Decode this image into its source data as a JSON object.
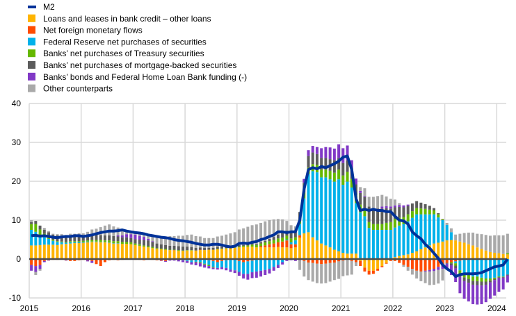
{
  "chart_data": {
    "type": "bar",
    "stacked": true,
    "frequency": "monthly",
    "start": "2015-01",
    "title": "",
    "xlabel": "",
    "ylabel": "",
    "ylim": [
      -10,
      40
    ],
    "yticks": [
      -10,
      0,
      10,
      20,
      30,
      40
    ],
    "xticks": [
      "2015",
      "2016",
      "2017",
      "2018",
      "2019",
      "2020",
      "2021",
      "2022",
      "2023",
      "2024"
    ],
    "grid": true,
    "legend_position": "top-left",
    "line": {
      "name": "M2",
      "color": "#003299",
      "values": [
        6.0,
        6.1,
        5.9,
        6.0,
        5.8,
        5.6,
        5.5,
        5.7,
        5.8,
        5.8,
        6.0,
        6.0,
        5.8,
        6.0,
        6.2,
        6.5,
        6.8,
        7.0,
        7.2,
        7.2,
        7.3,
        7.5,
        7.2,
        7.0,
        6.8,
        6.7,
        6.5,
        6.2,
        6.0,
        5.8,
        5.6,
        5.5,
        5.3,
        5.0,
        4.8,
        4.7,
        4.5,
        4.3,
        4.0,
        3.8,
        3.6,
        3.6,
        3.8,
        3.8,
        3.6,
        3.3,
        3.1,
        3.3,
        4.0,
        4.1,
        4.0,
        4.3,
        4.5,
        5.0,
        5.3,
        5.8,
        6.2,
        7.0,
        7.0,
        6.8,
        7.0,
        7.0,
        10.0,
        18.0,
        23.0,
        23.5,
        23.2,
        23.8,
        23.5,
        24.0,
        24.5,
        25.2,
        26.2,
        26.5,
        23.0,
        15.5,
        12.5,
        12.8,
        12.5,
        12.8,
        12.5,
        12.5,
        12.2,
        12.2,
        11.0,
        10.0,
        9.8,
        9.0,
        7.0,
        6.0,
        5.2,
        3.8,
        2.8,
        1.5,
        0.2,
        -1.5,
        -2.5,
        -3.2,
        -4.5,
        -4.0,
        -3.8,
        -3.8,
        -3.8,
        -3.7,
        -3.5,
        -3.0,
        -2.5,
        -2.0,
        -1.8,
        -1.5,
        0.0
      ]
    },
    "series": [
      {
        "name": "Loans and leases in bank credit – other loans",
        "color": "#FFB400",
        "values": [
          3.5,
          3.5,
          3.6,
          3.7,
          3.7,
          3.7,
          3.6,
          3.8,
          3.9,
          4.0,
          4.1,
          4.1,
          4.2,
          4.3,
          4.4,
          4.4,
          4.3,
          4.3,
          4.2,
          4.0,
          4.0,
          3.9,
          3.9,
          3.8,
          3.6,
          3.4,
          3.2,
          3.0,
          2.8,
          2.6,
          2.5,
          2.4,
          2.3,
          2.2,
          2.1,
          2.1,
          2.2,
          2.2,
          2.2,
          2.3,
          2.3,
          2.4,
          2.4,
          2.5,
          2.6,
          2.7,
          2.8,
          2.9,
          3.0,
          3.1,
          3.2,
          3.2,
          3.0,
          3.0,
          3.0,
          3.0,
          3.0,
          3.1,
          3.0,
          3.0,
          2.8,
          3.0,
          5.5,
          6.6,
          6.9,
          5.6,
          4.8,
          4.0,
          3.5,
          3.0,
          2.4,
          2.0,
          1.6,
          1.4,
          1.4,
          1.4,
          -0.5,
          -2.2,
          -3.0,
          -3.0,
          -2.5,
          -1.8,
          -1.0,
          -0.2,
          0.5,
          0.8,
          1.0,
          1.2,
          1.6,
          2.0,
          2.5,
          3.0,
          3.5,
          4.0,
          4.2,
          4.5,
          4.8,
          4.9,
          4.8,
          4.5,
          4.2,
          3.8,
          3.5,
          3.0,
          2.6,
          2.2,
          1.8,
          1.6,
          1.5,
          1.3,
          1.2
        ]
      },
      {
        "name": "Net foreign  monetary flows",
        "color": "#FF4B00",
        "values": [
          -1.5,
          -1.8,
          -1.5,
          -0.5,
          -0.3,
          -0.2,
          -0.2,
          -0.1,
          -0.3,
          -0.5,
          -0.5,
          -0.3,
          -0.2,
          -0.3,
          -0.5,
          -1.3,
          -1.8,
          -0.8,
          -0.3,
          -0.2,
          -0.3,
          -0.2,
          -0.1,
          -0.1,
          -0.2,
          -0.2,
          -0.3,
          -0.1,
          -0.2,
          -0.3,
          -0.4,
          -0.5,
          -0.1,
          0.1,
          -0.1,
          -0.2,
          -0.2,
          -0.3,
          -0.1,
          0.1,
          -0.2,
          -0.3,
          -0.5,
          -0.8,
          -0.5,
          -0.3,
          -0.2,
          -0.1,
          -0.5,
          -0.8,
          -0.6,
          -0.4,
          -0.2,
          0.3,
          0.5,
          0.8,
          1.0,
          1.2,
          1.5,
          1.8,
          1.0,
          0.8,
          0.6,
          -0.5,
          -0.9,
          -1.0,
          -1.2,
          -1.3,
          -1.2,
          -1.0,
          -0.9,
          -0.6,
          -0.4,
          -0.2,
          -0.5,
          -0.8,
          -1.3,
          -1.0,
          -1.0,
          -0.8,
          -0.5,
          -0.3,
          -0.2,
          -0.3,
          -0.5,
          -1.0,
          -1.5,
          -2.0,
          -2.5,
          -3.0,
          -3.2,
          -3.0,
          -2.8,
          -2.5,
          -2.0,
          -1.5,
          -1.0,
          -0.8,
          -0.6,
          -0.4,
          -0.2,
          -0.1,
          0,
          0,
          0,
          0,
          0,
          0,
          0,
          0,
          0
        ]
      },
      {
        "name": "Federal Reserve net purchases of securities",
        "color": "#00B1EA",
        "values": [
          4.0,
          3.5,
          2.5,
          2.0,
          1.5,
          1.0,
          0.8,
          0.5,
          0.3,
          0.3,
          0.2,
          0.2,
          0.2,
          0.2,
          0.1,
          0.1,
          0.1,
          0.1,
          0.1,
          0.1,
          0.1,
          0,
          0,
          0,
          0,
          0,
          0,
          0,
          0,
          0,
          0,
          0,
          0,
          0,
          0,
          -0.1,
          -0.3,
          -0.5,
          -0.6,
          -0.8,
          -1.0,
          -1.2,
          -1.5,
          -1.5,
          -1.6,
          -2.0,
          -2.5,
          -2.8,
          -2.8,
          -3.0,
          -3.2,
          -3.0,
          -3.0,
          -3.0,
          -2.8,
          -2.5,
          -2.0,
          -1.5,
          -0.8,
          0.2,
          0.5,
          1.0,
          3.0,
          9.0,
          15.0,
          17.0,
          17.5,
          17.0,
          17.5,
          17.5,
          17.5,
          18.5,
          17.5,
          18.5,
          17.0,
          13.0,
          12.0,
          11.0,
          8.0,
          7.5,
          7.5,
          7.5,
          7.5,
          7.5,
          7.6,
          7.8,
          8.0,
          8.5,
          9.0,
          9.5,
          9.0,
          8.5,
          8.0,
          7.5,
          6.5,
          5.5,
          4.0,
          2.0,
          -0.5,
          -2.5,
          -3.5,
          -4.0,
          -4.5,
          -4.5,
          -4.8,
          -5.0,
          -5.0,
          -4.8,
          -4.5,
          -4.5,
          -4.0
        ]
      },
      {
        "name": "Banks’ net purchases of Treasury securities",
        "color": "#65B800",
        "values": [
          1.5,
          2.0,
          1.5,
          0.8,
          0.5,
          0.3,
          0.2,
          0.2,
          0.2,
          0.3,
          0.3,
          0.3,
          0.3,
          0.3,
          0.4,
          0.4,
          0.5,
          0.4,
          0.5,
          0.5,
          0.5,
          0.5,
          0.5,
          0.5,
          0.4,
          0.4,
          0.3,
          0.3,
          0.3,
          0.2,
          0.2,
          0.2,
          0.1,
          0.1,
          0.2,
          0.1,
          0.1,
          0.1,
          -0.1,
          -0.2,
          -0.2,
          -0.3,
          -0.2,
          0.1,
          0.1,
          0.1,
          0.1,
          0.1,
          0.2,
          0.3,
          0.3,
          0.5,
          0.6,
          0.7,
          0.8,
          0.8,
          0.9,
          1.0,
          1.0,
          1.0,
          1.0,
          0.8,
          1.2,
          1.5,
          1.6,
          1.8,
          1.9,
          2.0,
          2.0,
          2.2,
          2.3,
          2.5,
          2.4,
          2.5,
          2.2,
          2.0,
          2.0,
          1.5,
          1.5,
          1.5,
          1.5,
          1.5,
          1.8,
          2.0,
          2.2,
          2.0,
          1.8,
          1.8,
          1.7,
          1.6,
          1.5,
          1.4,
          1.2,
          1.0,
          0.8,
          0.2,
          0,
          -0.3,
          -0.6,
          -0.9,
          -1.0,
          -1.0,
          -1.1,
          -1.2,
          -1.0,
          -0.8,
          -0.5,
          -0.3,
          -0.2,
          -0.1,
          0.3
        ]
      },
      {
        "name": "Banks’ net purchases of mortgage-backed securities",
        "color": "#5C5C5C",
        "values": [
          0.5,
          0.8,
          1.0,
          1.0,
          1.2,
          1.3,
          1.5,
          1.4,
          1.2,
          1.2,
          1.3,
          1.2,
          1.3,
          1.4,
          1.5,
          1.4,
          1.3,
          1.3,
          1.3,
          1.3,
          1.2,
          1.2,
          1.2,
          1.1,
          1.1,
          1.2,
          1.4,
          1.5,
          1.3,
          1.2,
          1.1,
          1.0,
          1.0,
          1.0,
          1.0,
          1.0,
          0.9,
          0.8,
          0.7,
          0.6,
          0.6,
          0.5,
          0.5,
          0.6,
          0.5,
          0.5,
          0.5,
          0.4,
          0.4,
          0.3,
          0.3,
          0.3,
          0.3,
          0.3,
          0.4,
          0.6,
          0.8,
          1.0,
          1.2,
          1.3,
          1.4,
          1.3,
          1.8,
          2.5,
          3.0,
          3.0,
          2.8,
          3.0,
          3.0,
          3.0,
          3.2,
          3.0,
          3.2,
          3.0,
          2.8,
          2.8,
          3.0,
          3.5,
          4.0,
          4.0,
          4.0,
          4.0,
          3.8,
          3.5,
          3.0,
          2.8,
          2.5,
          2.2,
          2.0,
          1.8,
          1.5,
          1.2,
          1.0,
          0.6,
          0.3,
          0.1,
          -0.2,
          -0.5,
          -0.7,
          -0.8,
          -1.0,
          -1.0,
          -1.0,
          -1.0,
          -1.0,
          -0.8,
          -0.5,
          -0.3,
          -0.2,
          -0.2,
          -0.2
        ]
      },
      {
        "name": "Banks’ bonds and Federal Home Loan Bank funding (-)",
        "color": "#8139C6",
        "values": [
          -1.5,
          -1.5,
          -1.0,
          -0.3,
          -0.1,
          0,
          0,
          0,
          -0.1,
          0,
          0,
          0,
          0,
          -0.3,
          -0.5,
          0,
          0,
          0,
          0,
          0,
          0.3,
          0.5,
          0.8,
          1.0,
          1.2,
          1.0,
          0.8,
          0.4,
          0.2,
          0,
          -0.1,
          -0.2,
          -0.3,
          -0.4,
          -0.5,
          -0.5,
          -0.5,
          -0.6,
          -0.8,
          -0.9,
          -0.8,
          -0.6,
          -0.4,
          -0.4,
          -0.5,
          -0.6,
          -0.6,
          -0.7,
          -1.0,
          -1.2,
          -1.5,
          -1.5,
          -1.6,
          -1.5,
          -1.3,
          -1.2,
          -1.0,
          -0.8,
          -0.6,
          -0.5,
          -0.3,
          -0.5,
          -0.3,
          1.0,
          1.5,
          1.7,
          1.8,
          2.5,
          2.8,
          3.0,
          3.0,
          3.5,
          3.8,
          3.8,
          2.0,
          1.5,
          0.5,
          0.2,
          0,
          0,
          0,
          0.5,
          0.5,
          0.5,
          0.5,
          0.5,
          0.5,
          0.3,
          0,
          0,
          0,
          -0.2,
          -0.4,
          -0.6,
          -0.8,
          -1.0,
          -1.5,
          -2.5,
          -3.5,
          -4.2,
          -4.5,
          -4.8,
          -5.0,
          -5.0,
          -4.8,
          -4.5,
          -4.2,
          -4.0,
          -3.5,
          -3.0,
          -1.8
        ]
      },
      {
        "name": "Other counterparts",
        "color": "#A9A9A9",
        "values": [
          0.5,
          -0.8,
          -0.5,
          0.5,
          0.3,
          0.2,
          0.3,
          0.5,
          0.6,
          0.7,
          0.6,
          0.8,
          0.6,
          0.8,
          1.2,
          1.5,
          2.0,
          2.5,
          2.8,
          2.5,
          2.0,
          1.5,
          1.0,
          0.8,
          0.8,
          1.0,
          1.0,
          1.2,
          1.5,
          1.8,
          2.0,
          2.2,
          2.5,
          2.5,
          2.7,
          2.8,
          3.0,
          3.2,
          3.0,
          2.8,
          2.5,
          2.5,
          2.5,
          2.6,
          2.8,
          3.0,
          3.2,
          3.5,
          4.0,
          4.2,
          4.5,
          4.7,
          5.0,
          5.0,
          5.0,
          4.8,
          4.5,
          4.0,
          3.5,
          2.5,
          2.0,
          1.5,
          -2.5,
          -4.0,
          -4.5,
          -4.8,
          -5.0,
          -5.0,
          -5.0,
          -4.8,
          -4.5,
          -4.5,
          -4.0,
          -4.0,
          -3.5,
          -1.0,
          1.0,
          2.0,
          2.5,
          3.0,
          3.2,
          3.0,
          2.5,
          2.0,
          1.5,
          0.5,
          -0.5,
          -1.0,
          -1.5,
          -2.0,
          -2.5,
          -3.0,
          -3.5,
          -3.5,
          -3.5,
          -3.0,
          0.5,
          1.0,
          1.5,
          2.0,
          2.5,
          3.0,
          3.3,
          3.5,
          3.8,
          4.0,
          4.2,
          4.5,
          4.6,
          4.8,
          5.0
        ]
      }
    ]
  }
}
